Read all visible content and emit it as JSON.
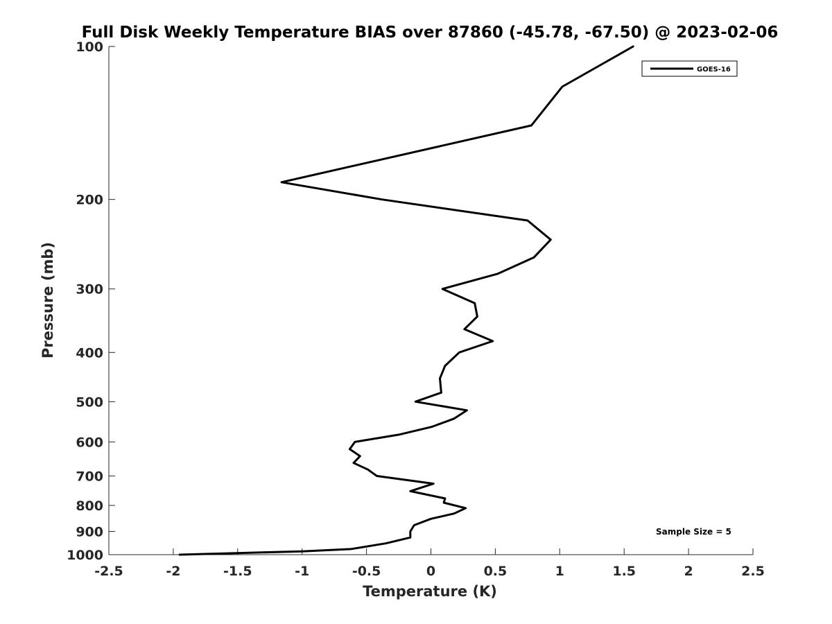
{
  "chart_data": {
    "type": "line",
    "title": "Full Disk Weekly Temperature BIAS over 87860 (-45.78, -67.50) @ 2023-02-06",
    "xlabel": "Temperature (K)",
    "ylabel": "Pressure (mb)",
    "xlim": [
      -2.5,
      2.5
    ],
    "ylim": [
      100,
      1000
    ],
    "yscale": "log",
    "y_reversed": true,
    "grid": false,
    "legend_position": "top-right",
    "x_ticks": [
      -2.5,
      -2,
      -1.5,
      -1,
      -0.5,
      0,
      0.5,
      1,
      1.5,
      2,
      2.5
    ],
    "x_tick_labels": [
      "-2.5",
      "-2",
      "-1.5",
      "-1",
      "-0.5",
      "0",
      "0.5",
      "1",
      "1.5",
      "2",
      "2.5"
    ],
    "y_ticks": [
      100,
      200,
      300,
      400,
      500,
      600,
      700,
      800,
      900,
      1000
    ],
    "y_tick_labels": [
      "100",
      "200",
      "300",
      "400",
      "500",
      "600",
      "700",
      "800",
      "900",
      "1000"
    ],
    "series": [
      {
        "name": "GOES-16",
        "color": "#000000",
        "points": [
          {
            "x": 1.57,
            "p": 100
          },
          {
            "x": 1.02,
            "p": 120
          },
          {
            "x": 0.78,
            "p": 143
          },
          {
            "x": -1.16,
            "p": 185
          },
          {
            "x": -0.38,
            "p": 200
          },
          {
            "x": 0.75,
            "p": 220
          },
          {
            "x": 0.93,
            "p": 240
          },
          {
            "x": 0.8,
            "p": 260
          },
          {
            "x": 0.52,
            "p": 280
          },
          {
            "x": 0.09,
            "p": 300
          },
          {
            "x": 0.34,
            "p": 320
          },
          {
            "x": 0.36,
            "p": 340
          },
          {
            "x": 0.26,
            "p": 360
          },
          {
            "x": 0.48,
            "p": 380
          },
          {
            "x": 0.22,
            "p": 400
          },
          {
            "x": 0.11,
            "p": 425
          },
          {
            "x": 0.07,
            "p": 450
          },
          {
            "x": 0.08,
            "p": 480
          },
          {
            "x": -0.12,
            "p": 500
          },
          {
            "x": 0.28,
            "p": 520
          },
          {
            "x": 0.18,
            "p": 540
          },
          {
            "x": 0.01,
            "p": 560
          },
          {
            "x": -0.24,
            "p": 580
          },
          {
            "x": -0.59,
            "p": 600
          },
          {
            "x": -0.63,
            "p": 620
          },
          {
            "x": -0.55,
            "p": 640
          },
          {
            "x": -0.6,
            "p": 660
          },
          {
            "x": -0.49,
            "p": 680
          },
          {
            "x": -0.42,
            "p": 700
          },
          {
            "x": 0.02,
            "p": 725
          },
          {
            "x": -0.16,
            "p": 750
          },
          {
            "x": 0.11,
            "p": 775
          },
          {
            "x": 0.1,
            "p": 790
          },
          {
            "x": 0.27,
            "p": 810
          },
          {
            "x": 0.18,
            "p": 830
          },
          {
            "x": 0.0,
            "p": 850
          },
          {
            "x": -0.13,
            "p": 875
          },
          {
            "x": -0.16,
            "p": 900
          },
          {
            "x": -0.16,
            "p": 925
          },
          {
            "x": -0.35,
            "p": 950
          },
          {
            "x": -0.62,
            "p": 975
          },
          {
            "x": -1.0,
            "p": 985
          },
          {
            "x": -1.95,
            "p": 1000
          }
        ]
      }
    ],
    "legend": [
      "GOES-16"
    ],
    "annotations": [
      "Sample Size = 5"
    ]
  }
}
